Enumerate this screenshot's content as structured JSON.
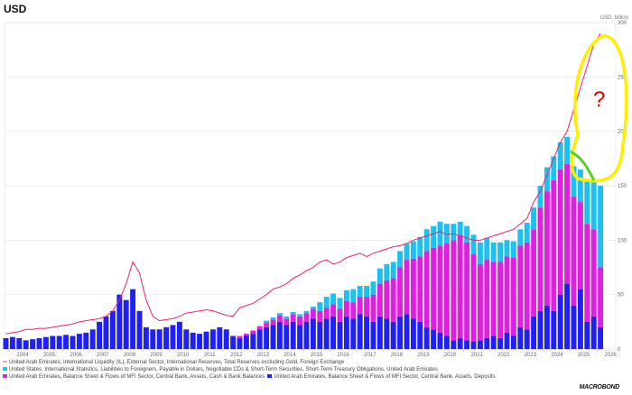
{
  "title": "USD",
  "logo": "MACROBOND",
  "annotation": {
    "text": "?",
    "color": "#e00000",
    "ellipse_color": "#ffee00",
    "curve_color": "#5ad01e"
  },
  "chart_data": {
    "type": "bar",
    "ylabel": "USD, billion",
    "ylim": [
      0,
      300
    ],
    "yticks": [
      0,
      50,
      100,
      150,
      200,
      250,
      300
    ],
    "xticks": [
      "2004",
      "2005",
      "2006",
      "2007",
      "2008",
      "2009",
      "2010",
      "2011",
      "2012",
      "2013",
      "2014",
      "2015",
      "2016",
      "2017",
      "2018",
      "2019",
      "2020",
      "2021",
      "2022",
      "2023",
      "2024",
      "2025",
      "2026"
    ],
    "x_start": "2003-Q2",
    "frequency": "quarterly",
    "grid": true,
    "legend": "bottom",
    "series": [
      {
        "name": "United Arab Emirates, Balance Sheet & Flows of MFI Sector, Central Bank, Assets, Deposits",
        "type": "stacked-bar",
        "color": "#2020f0",
        "values": [
          10,
          11,
          10,
          8,
          9,
          10,
          11,
          12,
          12,
          13,
          12,
          14,
          15,
          18,
          25,
          30,
          35,
          50,
          45,
          55,
          35,
          20,
          18,
          18,
          20,
          22,
          25,
          18,
          15,
          14,
          16,
          18,
          20,
          18,
          12,
          10,
          12,
          14,
          18,
          20,
          22,
          25,
          22,
          25,
          22,
          25,
          28,
          25,
          28,
          30,
          25,
          30,
          28,
          32,
          30,
          25,
          30,
          28,
          25,
          30,
          32,
          28,
          25,
          20,
          18,
          15,
          12,
          8,
          10,
          8,
          7,
          8,
          10,
          12,
          10,
          15,
          12,
          20,
          18,
          30,
          35,
          40,
          35,
          50,
          60,
          40,
          55,
          25,
          30,
          20
        ]
      },
      {
        "name": "United Arab Emirates, Balance Sheet & Flows of MFI Sector, Central Bank, Assets, Cash & Bank Balances",
        "type": "stacked-bar",
        "color": "#e020e0",
        "values": [
          0,
          0,
          0,
          0,
          0,
          0,
          0,
          0,
          0,
          0,
          0,
          0,
          0,
          0,
          0,
          0,
          0,
          0,
          0,
          0,
          0,
          0,
          0,
          0,
          0,
          0,
          0,
          0,
          0,
          0,
          0,
          0,
          0,
          0,
          0,
          2,
          2,
          3,
          3,
          4,
          5,
          6,
          6,
          7,
          8,
          8,
          9,
          10,
          10,
          11,
          12,
          14,
          15,
          16,
          18,
          25,
          30,
          35,
          40,
          45,
          50,
          55,
          60,
          70,
          75,
          80,
          85,
          92,
          95,
          90,
          80,
          70,
          72,
          68,
          70,
          70,
          72,
          75,
          80,
          80,
          95,
          105,
          120,
          115,
          110,
          100,
          80,
          90,
          80,
          55
        ]
      },
      {
        "name": "United States, International Statistics, Liabilities to Foreigners, Payable in Dollars, Negotiable CDs & Short-Term Securities, Short-Term Treasury Obligations, United Arab Emirates",
        "type": "stacked-bar",
        "color": "#1ec0f0",
        "values": [
          0,
          0,
          0,
          0,
          0,
          0,
          0,
          0,
          0,
          0,
          0,
          0,
          0,
          0,
          0,
          0,
          0,
          0,
          0,
          0,
          0,
          0,
          0,
          0,
          0,
          0,
          0,
          0,
          0,
          0,
          0,
          0,
          0,
          0,
          0,
          0,
          0,
          0,
          0,
          2,
          2,
          2,
          2,
          2,
          2,
          2,
          2,
          8,
          10,
          10,
          10,
          10,
          12,
          10,
          10,
          12,
          14,
          15,
          15,
          15,
          15,
          16,
          18,
          20,
          20,
          22,
          18,
          15,
          12,
          15,
          18,
          20,
          20,
          18,
          18,
          15,
          15,
          15,
          18,
          20,
          20,
          22,
          22,
          25,
          25,
          28,
          30,
          40,
          45,
          75
        ]
      },
      {
        "name": "United Arab Emirates, International Liquidity (IL), External Sector, International Reserves, Total Reserves excluding Gold, Foreign Exchange",
        "type": "line",
        "color": "#f0206a",
        "values": [
          14,
          15,
          16,
          18,
          18,
          19,
          19,
          20,
          21,
          22,
          23,
          25,
          26,
          27,
          28,
          30,
          35,
          45,
          60,
          80,
          70,
          45,
          30,
          26,
          27,
          28,
          30,
          33,
          34,
          35,
          36,
          35,
          33,
          31,
          30,
          38,
          40,
          42,
          46,
          50,
          55,
          57,
          60,
          65,
          68,
          72,
          75,
          80,
          82,
          78,
          80,
          84,
          86,
          88,
          85,
          88,
          90,
          92,
          94,
          95,
          97,
          100,
          102,
          104,
          106,
          108,
          105,
          106,
          104,
          102,
          100,
          100,
          102,
          104,
          106,
          108,
          110,
          115,
          120,
          135,
          145,
          160,
          175,
          190,
          200,
          220,
          240,
          260,
          280,
          290
        ]
      }
    ],
    "legend_order": [
      3,
      2,
      1,
      0
    ]
  }
}
